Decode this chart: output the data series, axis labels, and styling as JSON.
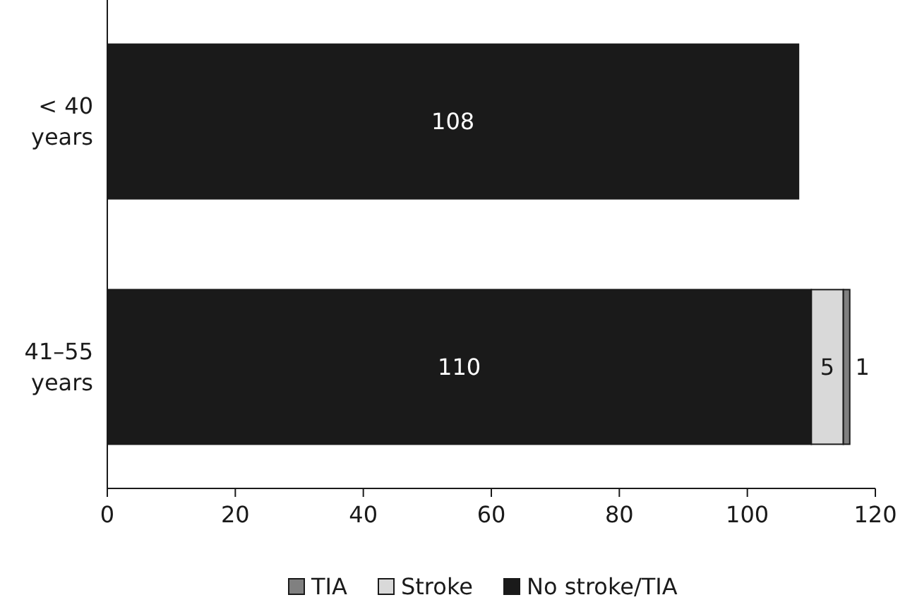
{
  "chart_data": {
    "type": "bar",
    "orientation": "horizontal",
    "stacked": true,
    "categories": [
      "< 40 years",
      "41–55 years"
    ],
    "series": [
      {
        "name": "No stroke/TIA",
        "color": "#1a1a1a",
        "values": [
          108,
          110
        ],
        "value_labels": [
          "108",
          "110"
        ]
      },
      {
        "name": "Stroke",
        "color": "#d9d9d9",
        "values": [
          0,
          5
        ],
        "value_labels": [
          null,
          "5"
        ]
      },
      {
        "name": "TIA",
        "color": "#808080",
        "values": [
          0,
          1
        ],
        "value_labels": [
          null,
          "1"
        ]
      }
    ],
    "xlim": [
      0,
      120
    ],
    "xticks": [
      0,
      20,
      40,
      60,
      80,
      100,
      120
    ],
    "legend": "bottom"
  }
}
